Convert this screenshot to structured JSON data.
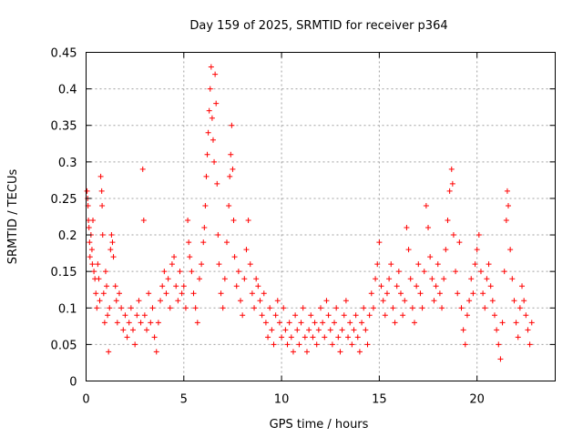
{
  "chart_data": {
    "type": "scatter",
    "title": "Day 159 of 2025, SRMTID for receiver p364",
    "xlabel": "GPS time / hours",
    "ylabel": "SRMTID / TECUs",
    "xlim": [
      0,
      24
    ],
    "ylim": [
      0,
      0.45
    ],
    "x_ticks": [
      0,
      5,
      10,
      15,
      20
    ],
    "x_tick_labels": [
      "0",
      "5",
      "10",
      "15",
      "20"
    ],
    "y_ticks": [
      0,
      0.05,
      0.1,
      0.15,
      0.2,
      0.25,
      0.3,
      0.35,
      0.4,
      0.45
    ],
    "y_tick_labels": [
      "0",
      "0.05",
      "0.1",
      "0.15",
      "0.2",
      "0.25",
      "0.3",
      "0.35",
      "0.4",
      "0.45"
    ],
    "grid": true,
    "marker": "plus",
    "color": "#ff0000",
    "series": [
      {
        "name": "SRMTID",
        "points": [
          [
            0.05,
            0.26
          ],
          [
            0.08,
            0.25
          ],
          [
            0.1,
            0.24
          ],
          [
            0.12,
            0.22
          ],
          [
            0.15,
            0.21
          ],
          [
            0.18,
            0.19
          ],
          [
            0.2,
            0.17
          ],
          [
            0.25,
            0.2
          ],
          [
            0.3,
            0.18
          ],
          [
            0.32,
            0.16
          ],
          [
            0.35,
            0.22
          ],
          [
            0.4,
            0.15
          ],
          [
            0.45,
            0.14
          ],
          [
            0.5,
            0.12
          ],
          [
            0.55,
            0.1
          ],
          [
            0.6,
            0.16
          ],
          [
            0.65,
            0.14
          ],
          [
            0.7,
            0.11
          ],
          [
            0.75,
            0.28
          ],
          [
            0.8,
            0.26
          ],
          [
            0.82,
            0.24
          ],
          [
            0.85,
            0.2
          ],
          [
            0.9,
            0.12
          ],
          [
            0.95,
            0.08
          ],
          [
            1.0,
            0.15
          ],
          [
            1.05,
            0.13
          ],
          [
            1.1,
            0.09
          ],
          [
            1.15,
            0.04
          ],
          [
            1.2,
            0.1
          ],
          [
            1.25,
            0.18
          ],
          [
            1.3,
            0.2
          ],
          [
            1.35,
            0.19
          ],
          [
            1.4,
            0.17
          ],
          [
            1.5,
            0.13
          ],
          [
            1.55,
            0.11
          ],
          [
            1.6,
            0.08
          ],
          [
            1.7,
            0.12
          ],
          [
            1.8,
            0.1
          ],
          [
            1.9,
            0.07
          ],
          [
            2.0,
            0.09
          ],
          [
            2.1,
            0.06
          ],
          [
            2.2,
            0.08
          ],
          [
            2.3,
            0.1
          ],
          [
            2.4,
            0.07
          ],
          [
            2.5,
            0.05
          ],
          [
            2.6,
            0.09
          ],
          [
            2.7,
            0.11
          ],
          [
            2.8,
            0.08
          ],
          [
            2.9,
            0.29
          ],
          [
            2.95,
            0.22
          ],
          [
            3.0,
            0.09
          ],
          [
            3.1,
            0.07
          ],
          [
            3.2,
            0.12
          ],
          [
            3.3,
            0.08
          ],
          [
            3.4,
            0.1
          ],
          [
            3.5,
            0.06
          ],
          [
            3.6,
            0.04
          ],
          [
            3.7,
            0.08
          ],
          [
            3.8,
            0.11
          ],
          [
            3.9,
            0.13
          ],
          [
            4.0,
            0.15
          ],
          [
            4.1,
            0.12
          ],
          [
            4.2,
            0.14
          ],
          [
            4.3,
            0.1
          ],
          [
            4.4,
            0.16
          ],
          [
            4.5,
            0.17
          ],
          [
            4.6,
            0.13
          ],
          [
            4.7,
            0.11
          ],
          [
            4.8,
            0.15
          ],
          [
            4.9,
            0.12
          ],
          [
            5.0,
            0.13
          ],
          [
            5.1,
            0.1
          ],
          [
            5.2,
            0.22
          ],
          [
            5.25,
            0.19
          ],
          [
            5.3,
            0.17
          ],
          [
            5.4,
            0.15
          ],
          [
            5.5,
            0.12
          ],
          [
            5.6,
            0.1
          ],
          [
            5.7,
            0.08
          ],
          [
            5.8,
            0.14
          ],
          [
            5.9,
            0.16
          ],
          [
            6.0,
            0.19
          ],
          [
            6.05,
            0.21
          ],
          [
            6.1,
            0.24
          ],
          [
            6.15,
            0.28
          ],
          [
            6.2,
            0.31
          ],
          [
            6.25,
            0.34
          ],
          [
            6.3,
            0.37
          ],
          [
            6.35,
            0.4
          ],
          [
            6.4,
            0.43
          ],
          [
            6.45,
            0.36
          ],
          [
            6.5,
            0.33
          ],
          [
            6.55,
            0.3
          ],
          [
            6.6,
            0.42
          ],
          [
            6.65,
            0.38
          ],
          [
            6.7,
            0.27
          ],
          [
            6.75,
            0.2
          ],
          [
            6.8,
            0.16
          ],
          [
            6.9,
            0.12
          ],
          [
            7.0,
            0.1
          ],
          [
            7.1,
            0.14
          ],
          [
            7.2,
            0.19
          ],
          [
            7.3,
            0.24
          ],
          [
            7.35,
            0.28
          ],
          [
            7.4,
            0.31
          ],
          [
            7.45,
            0.35
          ],
          [
            7.5,
            0.29
          ],
          [
            7.55,
            0.22
          ],
          [
            7.6,
            0.17
          ],
          [
            7.7,
            0.13
          ],
          [
            7.8,
            0.15
          ],
          [
            7.9,
            0.11
          ],
          [
            8.0,
            0.09
          ],
          [
            8.1,
            0.14
          ],
          [
            8.2,
            0.18
          ],
          [
            8.3,
            0.22
          ],
          [
            8.4,
            0.16
          ],
          [
            8.5,
            0.12
          ],
          [
            8.6,
            0.1
          ],
          [
            8.7,
            0.14
          ],
          [
            8.8,
            0.13
          ],
          [
            8.9,
            0.11
          ],
          [
            9.0,
            0.09
          ],
          [
            9.1,
            0.12
          ],
          [
            9.2,
            0.08
          ],
          [
            9.3,
            0.06
          ],
          [
            9.4,
            0.1
          ],
          [
            9.5,
            0.07
          ],
          [
            9.6,
            0.05
          ],
          [
            9.7,
            0.09
          ],
          [
            9.8,
            0.11
          ],
          [
            9.9,
            0.08
          ],
          [
            10.0,
            0.06
          ],
          [
            10.1,
            0.1
          ],
          [
            10.2,
            0.07
          ],
          [
            10.3,
            0.05
          ],
          [
            10.4,
            0.08
          ],
          [
            10.5,
            0.06
          ],
          [
            10.6,
            0.04
          ],
          [
            10.7,
            0.09
          ],
          [
            10.8,
            0.07
          ],
          [
            10.9,
            0.05
          ],
          [
            11.0,
            0.08
          ],
          [
            11.1,
            0.1
          ],
          [
            11.2,
            0.06
          ],
          [
            11.3,
            0.04
          ],
          [
            11.4,
            0.07
          ],
          [
            11.5,
            0.09
          ],
          [
            11.6,
            0.06
          ],
          [
            11.7,
            0.08
          ],
          [
            11.8,
            0.05
          ],
          [
            11.9,
            0.07
          ],
          [
            12.0,
            0.1
          ],
          [
            12.1,
            0.08
          ],
          [
            12.2,
            0.06
          ],
          [
            12.3,
            0.11
          ],
          [
            12.4,
            0.09
          ],
          [
            12.5,
            0.07
          ],
          [
            12.6,
            0.05
          ],
          [
            12.7,
            0.08
          ],
          [
            12.8,
            0.1
          ],
          [
            12.9,
            0.06
          ],
          [
            13.0,
            0.04
          ],
          [
            13.1,
            0.07
          ],
          [
            13.2,
            0.09
          ],
          [
            13.3,
            0.11
          ],
          [
            13.4,
            0.06
          ],
          [
            13.5,
            0.08
          ],
          [
            13.6,
            0.05
          ],
          [
            13.7,
            0.07
          ],
          [
            13.8,
            0.09
          ],
          [
            13.9,
            0.06
          ],
          [
            14.0,
            0.04
          ],
          [
            14.1,
            0.08
          ],
          [
            14.2,
            0.1
          ],
          [
            14.3,
            0.07
          ],
          [
            14.4,
            0.05
          ],
          [
            14.5,
            0.09
          ],
          [
            14.6,
            0.12
          ],
          [
            14.7,
            0.1
          ],
          [
            14.8,
            0.14
          ],
          [
            14.9,
            0.16
          ],
          [
            15.0,
            0.19
          ],
          [
            15.1,
            0.13
          ],
          [
            15.2,
            0.11
          ],
          [
            15.3,
            0.09
          ],
          [
            15.4,
            0.12
          ],
          [
            15.5,
            0.14
          ],
          [
            15.6,
            0.16
          ],
          [
            15.7,
            0.1
          ],
          [
            15.8,
            0.08
          ],
          [
            15.9,
            0.13
          ],
          [
            16.0,
            0.15
          ],
          [
            16.1,
            0.12
          ],
          [
            16.2,
            0.09
          ],
          [
            16.3,
            0.11
          ],
          [
            16.4,
            0.21
          ],
          [
            16.5,
            0.18
          ],
          [
            16.6,
            0.14
          ],
          [
            16.7,
            0.1
          ],
          [
            16.8,
            0.08
          ],
          [
            16.9,
            0.13
          ],
          [
            17.0,
            0.16
          ],
          [
            17.1,
            0.12
          ],
          [
            17.2,
            0.1
          ],
          [
            17.3,
            0.15
          ],
          [
            17.4,
            0.24
          ],
          [
            17.5,
            0.21
          ],
          [
            17.6,
            0.17
          ],
          [
            17.7,
            0.14
          ],
          [
            17.8,
            0.11
          ],
          [
            17.9,
            0.13
          ],
          [
            18.0,
            0.16
          ],
          [
            18.1,
            0.12
          ],
          [
            18.2,
            0.1
          ],
          [
            18.3,
            0.14
          ],
          [
            18.4,
            0.18
          ],
          [
            18.5,
            0.22
          ],
          [
            18.6,
            0.26
          ],
          [
            18.7,
            0.29
          ],
          [
            18.75,
            0.27
          ],
          [
            18.8,
            0.2
          ],
          [
            18.9,
            0.15
          ],
          [
            19.0,
            0.12
          ],
          [
            19.1,
            0.19
          ],
          [
            19.2,
            0.1
          ],
          [
            19.3,
            0.07
          ],
          [
            19.4,
            0.05
          ],
          [
            19.5,
            0.09
          ],
          [
            19.6,
            0.11
          ],
          [
            19.7,
            0.14
          ],
          [
            19.8,
            0.12
          ],
          [
            19.9,
            0.16
          ],
          [
            20.0,
            0.18
          ],
          [
            20.1,
            0.2
          ],
          [
            20.2,
            0.15
          ],
          [
            20.3,
            0.12
          ],
          [
            20.4,
            0.1
          ],
          [
            20.5,
            0.14
          ],
          [
            20.6,
            0.16
          ],
          [
            20.7,
            0.13
          ],
          [
            20.8,
            0.11
          ],
          [
            20.9,
            0.09
          ],
          [
            21.0,
            0.07
          ],
          [
            21.1,
            0.05
          ],
          [
            21.2,
            0.03
          ],
          [
            21.3,
            0.08
          ],
          [
            21.4,
            0.15
          ],
          [
            21.5,
            0.22
          ],
          [
            21.55,
            0.26
          ],
          [
            21.6,
            0.24
          ],
          [
            21.7,
            0.18
          ],
          [
            21.8,
            0.14
          ],
          [
            21.9,
            0.11
          ],
          [
            22.0,
            0.08
          ],
          [
            22.1,
            0.06
          ],
          [
            22.2,
            0.1
          ],
          [
            22.3,
            0.13
          ],
          [
            22.4,
            0.11
          ],
          [
            22.5,
            0.09
          ],
          [
            22.6,
            0.07
          ],
          [
            22.7,
            0.05
          ],
          [
            22.8,
            0.08
          ]
        ]
      }
    ]
  }
}
